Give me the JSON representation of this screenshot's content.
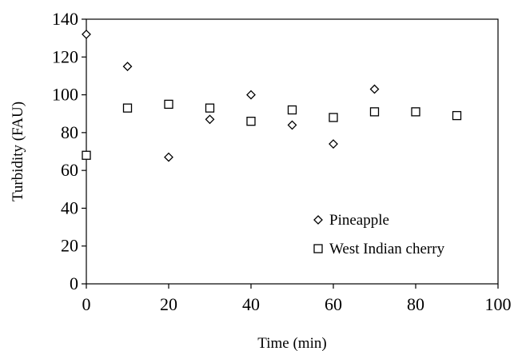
{
  "chart_data": {
    "type": "scatter",
    "title": "",
    "xlabel": "Time (min)",
    "ylabel": "Turbidity  (FAU)",
    "xlim": [
      0,
      100
    ],
    "ylim": [
      0,
      140
    ],
    "xticks": [
      0,
      20,
      40,
      60,
      80,
      100
    ],
    "yticks": [
      0,
      20,
      40,
      60,
      80,
      100,
      120,
      140
    ],
    "grid": false,
    "legend_position": "bottom-right",
    "series": [
      {
        "name": "Pineapple",
        "marker": "diamond",
        "color": "#000000",
        "x": [
          0,
          10,
          20,
          30,
          40,
          50,
          60,
          70
        ],
        "y": [
          132,
          115,
          67,
          87,
          100,
          84,
          74,
          103
        ]
      },
      {
        "name": "West Indian cherry",
        "marker": "square",
        "color": "#000000",
        "x": [
          0,
          10,
          20,
          30,
          40,
          50,
          60,
          70,
          80,
          90
        ],
        "y": [
          68,
          93,
          95,
          93,
          86,
          92,
          88,
          91,
          91,
          89
        ]
      }
    ]
  }
}
